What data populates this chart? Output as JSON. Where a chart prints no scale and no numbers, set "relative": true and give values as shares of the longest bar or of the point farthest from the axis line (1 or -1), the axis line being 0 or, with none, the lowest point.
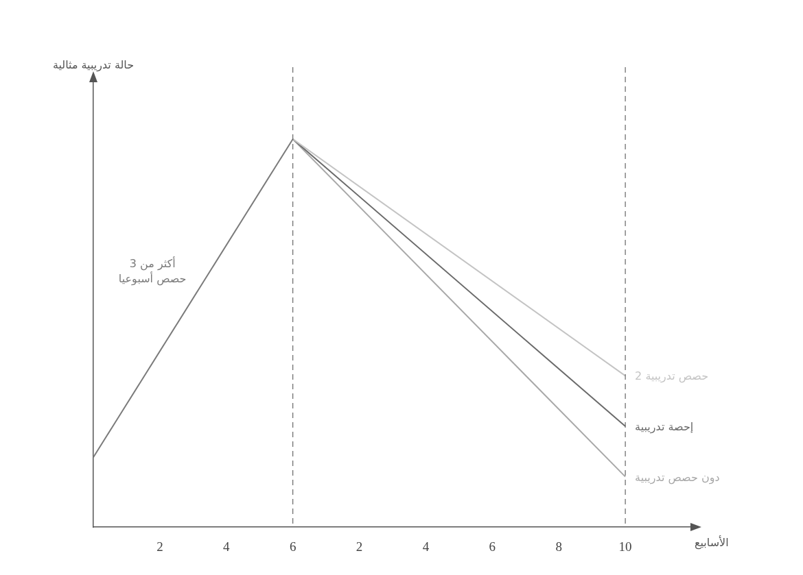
{
  "chart_data": {
    "type": "line",
    "relative": true,
    "xlabel": "الأسابيع",
    "annotations": [
      "حالة تدريبية مثالية"
    ],
    "categories": [
      null,
      "2",
      "4",
      "6",
      "2",
      "4",
      "6",
      "8",
      "10",
      null
    ],
    "series": [
      {
        "name": "أكثر من 3 حصص أسبوعيا",
        "color": "#7a7a7a",
        "values": [
          0.18,
          null,
          null,
          1,
          null,
          null,
          null,
          null,
          null,
          null
        ]
      },
      {
        "name": "2 حصص تدريبية",
        "color": "#c4c4c4",
        "values": [
          null,
          null,
          null,
          1,
          null,
          null,
          null,
          null,
          0.39,
          null
        ]
      },
      {
        "name": "إحصة تدريبية",
        "color": "#6a6a6a",
        "values": [
          null,
          null,
          null,
          1,
          null,
          null,
          null,
          null,
          0.26,
          null
        ]
      },
      {
        "name": "دون حصص تدريبية",
        "color": "#a8a8a8",
        "values": [
          null,
          null,
          null,
          1,
          null,
          null,
          null,
          null,
          0.13,
          null
        ]
      }
    ],
    "ref_lines": [
      {
        "axis": "x",
        "value": "6",
        "line_style": "dashed",
        "color": "#666666"
      },
      {
        "axis": "x",
        "value": "10",
        "line_style": "dashed",
        "color": "#666666"
      }
    ],
    "grid": false,
    "legend": false,
    "marker": "none",
    "line_style": "solid"
  }
}
